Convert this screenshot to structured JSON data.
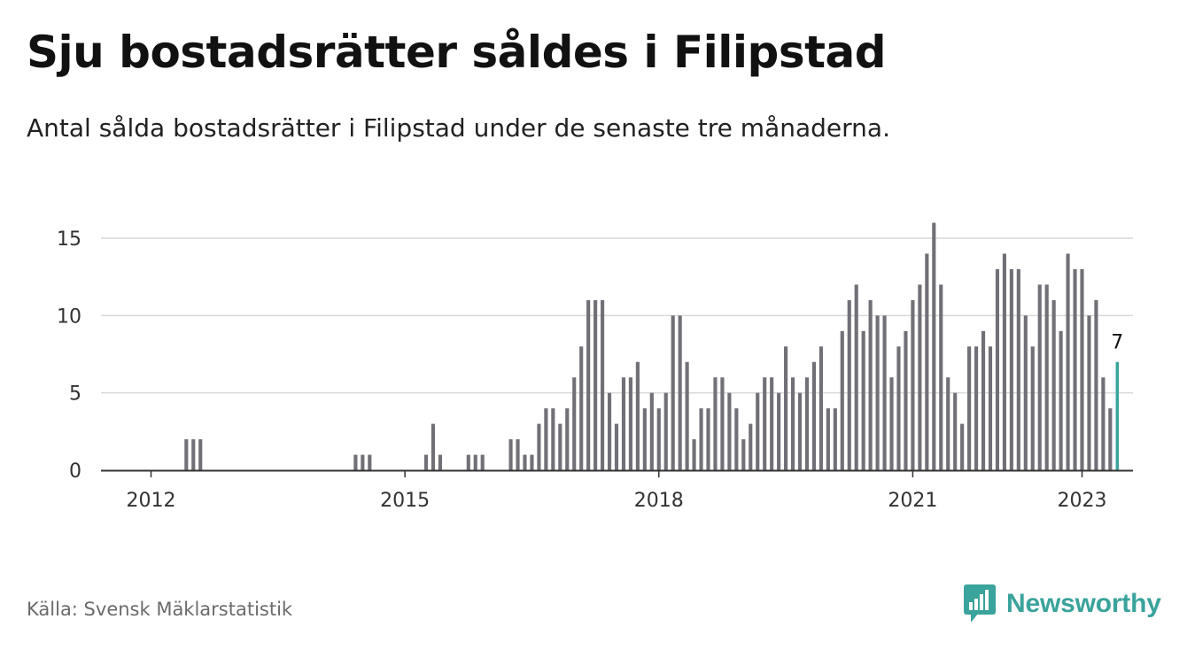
{
  "chart_data": {
    "type": "bar",
    "title": "Sju bostadsrätter såldes i Filipstad",
    "subtitle": "Antal sålda bostadsrätter i Filipstad under de senaste tre månaderna.",
    "xlabel": "",
    "ylabel": "",
    "ylim": [
      0,
      16
    ],
    "yticks": [
      0,
      5,
      10,
      15
    ],
    "xticks": [
      2012,
      2015,
      2018,
      2021,
      2023
    ],
    "x_start": "2011-07",
    "x_end": "2023-01",
    "x_unit": "month",
    "grid": true,
    "bar_color": "#707077",
    "highlight_color": "#3aa39b",
    "values": [
      0,
      0,
      0,
      0,
      0,
      0,
      0,
      0,
      0,
      0,
      0,
      2,
      2,
      2,
      0,
      0,
      0,
      0,
      0,
      0,
      0,
      0,
      0,
      0,
      0,
      0,
      0,
      0,
      0,
      0,
      0,
      0,
      0,
      0,
      0,
      1,
      1,
      1,
      0,
      0,
      0,
      0,
      0,
      0,
      0,
      1,
      3,
      1,
      0,
      0,
      0,
      1,
      1,
      1,
      0,
      0,
      0,
      2,
      2,
      1,
      1,
      3,
      4,
      4,
      3,
      4,
      6,
      8,
      11,
      11,
      11,
      5,
      3,
      6,
      6,
      7,
      4,
      5,
      4,
      5,
      10,
      10,
      7,
      2,
      4,
      4,
      6,
      6,
      5,
      4,
      2,
      3,
      5,
      6,
      6,
      5,
      8,
      6,
      5,
      6,
      7,
      8,
      4,
      4,
      9,
      11,
      12,
      9,
      11,
      10,
      10,
      6,
      8,
      9,
      11,
      12,
      14,
      16,
      12,
      6,
      5,
      3,
      8,
      8,
      9,
      8,
      13,
      14,
      13,
      13,
      10,
      8,
      12,
      12,
      11,
      9,
      14,
      13,
      13,
      10,
      11,
      6,
      4,
      7
    ],
    "highlight_last": true,
    "last_value_label": "7"
  },
  "source": "Källa: Svensk Mäklarstatistik",
  "logo": {
    "text": "Newsworthy",
    "icon": "bar-chart-speech-bubble-icon",
    "color": "#3aa39b"
  }
}
